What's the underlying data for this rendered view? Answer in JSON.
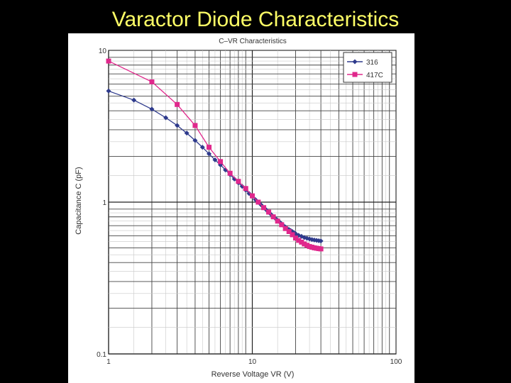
{
  "slide": {
    "title": "Varactor Diode Characteristics"
  },
  "chart_data": {
    "type": "line",
    "title": "C–VR Characteristics",
    "xlabel": "Reverse Voltage VR (V)",
    "ylabel": "Capacitance C (pF)",
    "xscale": "log",
    "yscale": "log",
    "xlim": [
      1,
      100
    ],
    "ylim": [
      0.1,
      10
    ],
    "x_ticks": [
      "1",
      "10",
      "100"
    ],
    "y_ticks": [
      "10",
      "1",
      "0.1"
    ],
    "grid": true,
    "legend_position": "top-right",
    "series": [
      {
        "name": "316",
        "color": "#2e3a8c",
        "marker": "diamond",
        "x": [
          1,
          1.5,
          2,
          2.5,
          3,
          3.5,
          4,
          4.5,
          5,
          5.5,
          6,
          6.5,
          7,
          7.5,
          8,
          8.5,
          9,
          9.5,
          10,
          10.5,
          11,
          11.5,
          12,
          12.5,
          13,
          13.5,
          14,
          14.5,
          15,
          15.5,
          16,
          16.5,
          17,
          17.5,
          18,
          18.5,
          19,
          19.5,
          20,
          21,
          22,
          23,
          24,
          25,
          26,
          27,
          28,
          29,
          30
        ],
        "values": [
          5.4,
          4.7,
          4.1,
          3.6,
          3.2,
          2.85,
          2.55,
          2.3,
          2.08,
          1.9,
          1.76,
          1.63,
          1.52,
          1.42,
          1.34,
          1.27,
          1.2,
          1.14,
          1.09,
          1.04,
          1.0,
          0.96,
          0.92,
          0.89,
          0.86,
          0.83,
          0.8,
          0.78,
          0.76,
          0.74,
          0.72,
          0.7,
          0.685,
          0.67,
          0.66,
          0.65,
          0.64,
          0.63,
          0.62,
          0.605,
          0.595,
          0.585,
          0.578,
          0.572,
          0.567,
          0.563,
          0.56,
          0.557,
          0.555
        ]
      },
      {
        "name": "417C",
        "color": "#e0288c",
        "marker": "square",
        "x": [
          1,
          2,
          3,
          4,
          5,
          6,
          7,
          8,
          9,
          10,
          11,
          12,
          13,
          14,
          15,
          16,
          17,
          18,
          19,
          20,
          21,
          22,
          23,
          24,
          25,
          26,
          27,
          28,
          29,
          30
        ],
        "values": [
          8.5,
          6.2,
          4.4,
          3.2,
          2.3,
          1.85,
          1.55,
          1.37,
          1.23,
          1.1,
          1.0,
          0.92,
          0.86,
          0.8,
          0.75,
          0.71,
          0.67,
          0.64,
          0.61,
          0.58,
          0.56,
          0.545,
          0.53,
          0.52,
          0.51,
          0.505,
          0.5,
          0.497,
          0.494,
          0.492
        ]
      }
    ]
  }
}
